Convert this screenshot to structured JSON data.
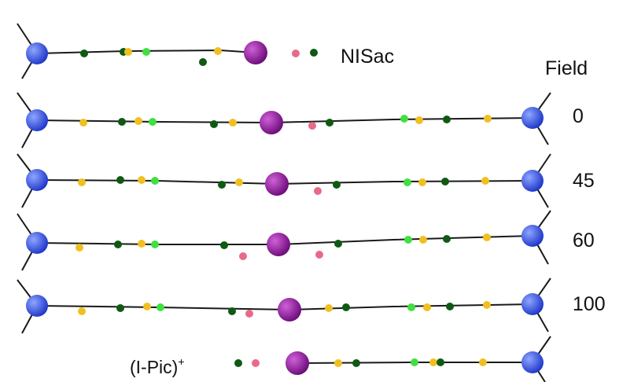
{
  "colors": {
    "bond": "#1a1a1a",
    "blue_atom": "#2f4fe0",
    "purple_atom": "#8a1096",
    "dark_green": "#0f5a12",
    "light_green": "#3fe03f",
    "yellow": "#f0c020",
    "pink": "#e86a8a"
  },
  "labels": {
    "top_molecule": "NISac",
    "bottom_molecule": "(I-Pic)",
    "bottom_charge": "+",
    "field_header": "Field",
    "field_values": [
      "0",
      "45",
      "60",
      "100"
    ]
  }
}
